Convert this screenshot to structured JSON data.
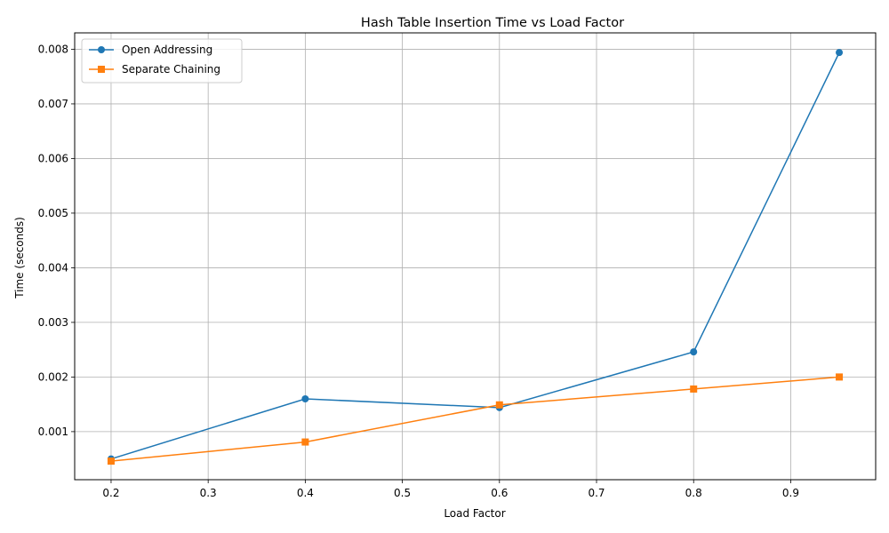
{
  "chart_data": {
    "type": "line",
    "title": "Hash Table Insertion Time vs Load Factor",
    "xlabel": "Load Factor",
    "ylabel": "Time (seconds)",
    "x": [
      0.2,
      0.4,
      0.6,
      0.8,
      0.95
    ],
    "xlim": [
      0.1625,
      0.9875
    ],
    "ylim": [
      0.00012,
      0.0083
    ],
    "xticks": [
      0.2,
      0.3,
      0.4,
      0.5,
      0.6,
      0.7,
      0.8,
      0.9
    ],
    "xtick_labels": [
      "0.2",
      "0.3",
      "0.4",
      "0.5",
      "0.6",
      "0.7",
      "0.8",
      "0.9"
    ],
    "yticks": [
      0.001,
      0.002,
      0.003,
      0.004,
      0.005,
      0.006,
      0.007,
      0.008
    ],
    "ytick_labels": [
      "0.001",
      "0.002",
      "0.003",
      "0.004",
      "0.005",
      "0.006",
      "0.007",
      "0.008"
    ],
    "grid": true,
    "legend_position": "top-left",
    "series": [
      {
        "name": "Open Addressing",
        "values": [
          0.0005,
          0.0016,
          0.00144,
          0.00246,
          0.00794
        ],
        "color": "#1f77b4",
        "marker": "circle"
      },
      {
        "name": "Separate Chaining",
        "values": [
          0.00046,
          0.00081,
          0.00149,
          0.00178,
          0.002
        ],
        "color": "#ff7f0e",
        "marker": "square"
      }
    ]
  }
}
